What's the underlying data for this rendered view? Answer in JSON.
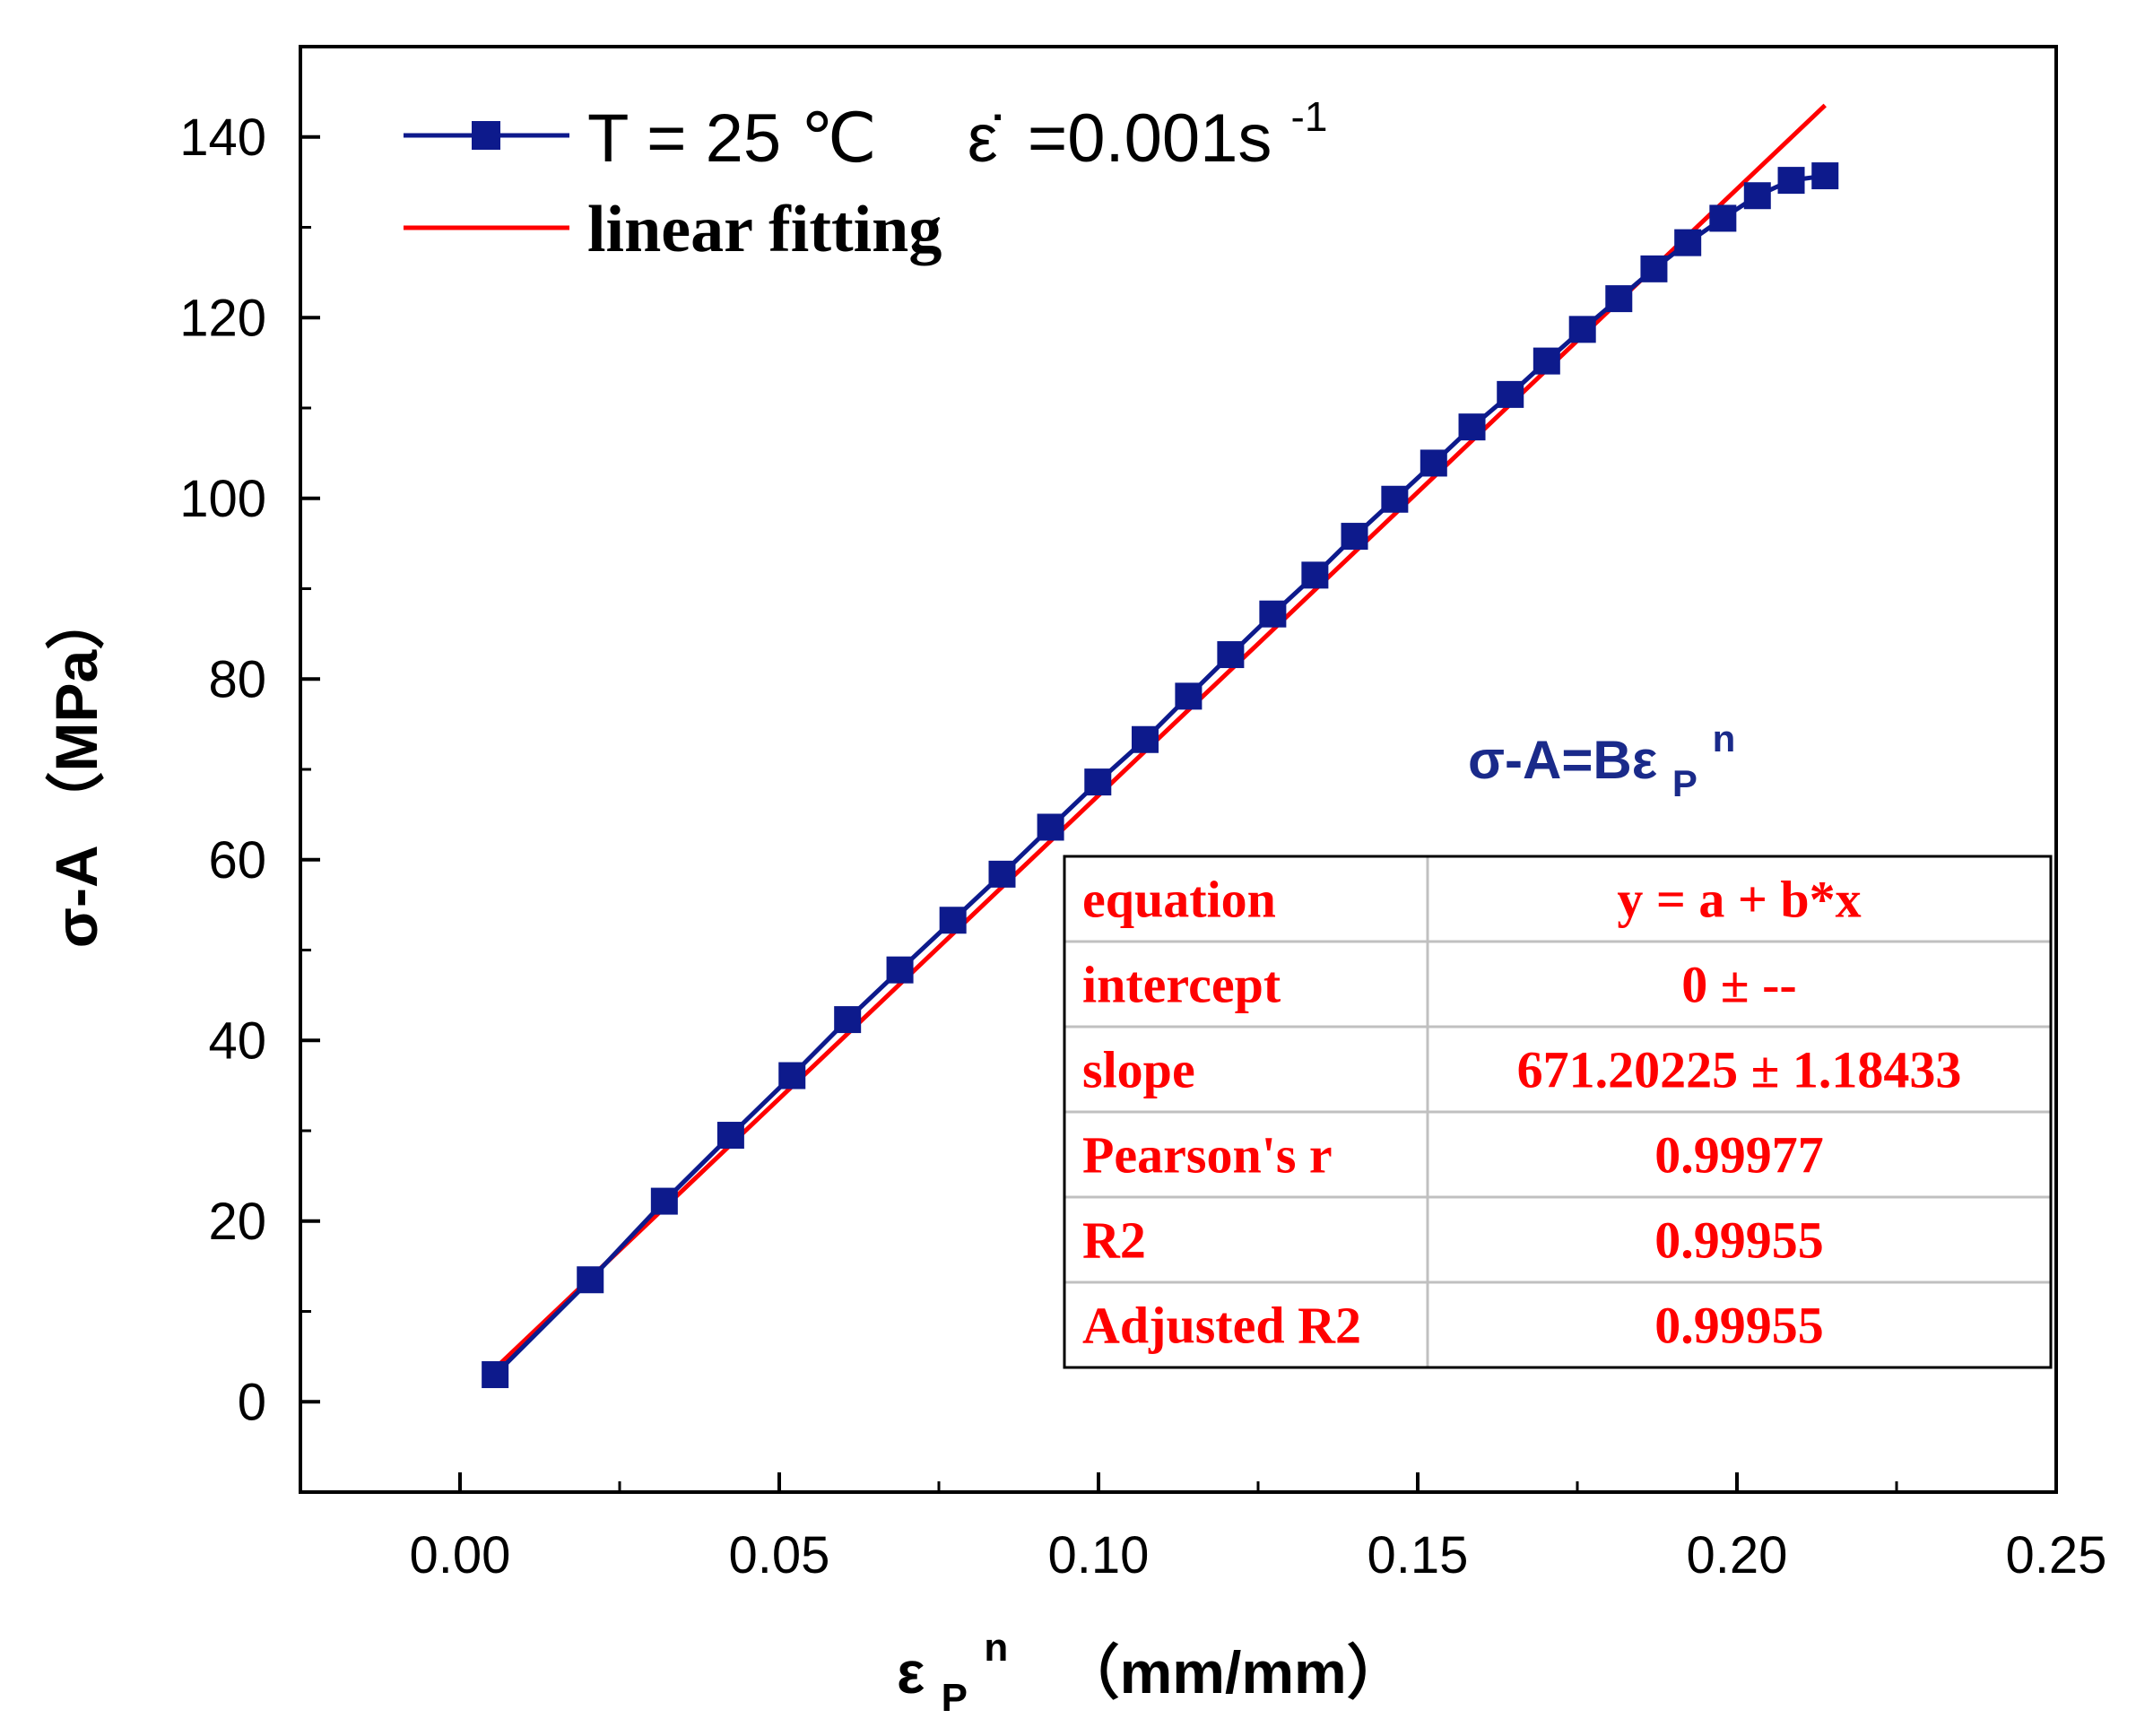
{
  "colors": {
    "series": "#0d1a8c",
    "fit": "#ff0000",
    "axis": "#000000",
    "table_grid": "#c0c0c0"
  },
  "legend": {
    "series_label": "T = 25 ℃",
    "strain_rate_symbol": "ε̇",
    "strain_rate_value": "=0.001s",
    "strain_rate_exp": "-1",
    "fit_label": "linear fitting"
  },
  "formula": {
    "lhs": "σ-A=Bε",
    "sub": "P",
    "sup": "n"
  },
  "fit_table": {
    "rows": [
      {
        "label": "equation",
        "value": "y = a + b*x"
      },
      {
        "label": "intercept",
        "value": "0 ± --"
      },
      {
        "label": "slope",
        "value": "671.20225 ± 1.18433"
      },
      {
        "label": "Pearson's r",
        "value": "0.99977"
      },
      {
        "label": "R2",
        "value": "0.99955"
      },
      {
        "label": "Adjusted R2",
        "value": "0.99955"
      }
    ]
  },
  "chart_data": {
    "type": "scatter",
    "title": "",
    "xlabel": {
      "base": "ε",
      "sub": "P",
      "sup": "n",
      "unit": "（mm/mm）"
    },
    "ylabel": "σ-A （MPa）",
    "xlim": [
      -0.025,
      0.25
    ],
    "ylim": [
      -10,
      150
    ],
    "x_ticks": [
      0.0,
      0.05,
      0.1,
      0.15,
      0.2,
      0.25
    ],
    "x_tick_labels": [
      "0.00",
      "0.05",
      "0.10",
      "0.15",
      "0.20",
      "0.25"
    ],
    "y_ticks": [
      0,
      20,
      40,
      60,
      80,
      100,
      120,
      140
    ],
    "y_tick_labels": [
      "0",
      "20",
      "40",
      "60",
      "80",
      "100",
      "120",
      "140"
    ],
    "series": [
      {
        "name": "T = 25 ℃ ε̇ =0.001s-1",
        "marker": "square",
        "x": [
          0.0055,
          0.0204,
          0.032,
          0.0424,
          0.052,
          0.0607,
          0.0689,
          0.0772,
          0.0849,
          0.0925,
          0.0999,
          0.1073,
          0.1141,
          0.1207,
          0.1273,
          0.1339,
          0.1401,
          0.1464,
          0.1525,
          0.1585,
          0.1645,
          0.1702,
          0.1758,
          0.1815,
          0.187,
          0.1923,
          0.1978,
          0.2032,
          0.2085,
          0.2138
        ],
        "y": [
          3,
          13.5,
          22.2,
          29.5,
          36.1,
          42.3,
          47.8,
          53.3,
          58.4,
          63.6,
          68.6,
          73.3,
          78.1,
          82.7,
          87.2,
          91.5,
          95.8,
          99.9,
          103.9,
          107.9,
          111.5,
          115.2,
          118.7,
          122.1,
          125.4,
          128.3,
          131.0,
          133.5,
          135.2,
          135.7
        ]
      }
    ],
    "fit": {
      "name": "linear fitting",
      "intercept": 0,
      "slope": 671.20225,
      "x_range": [
        0.0055,
        0.2138
      ]
    }
  }
}
